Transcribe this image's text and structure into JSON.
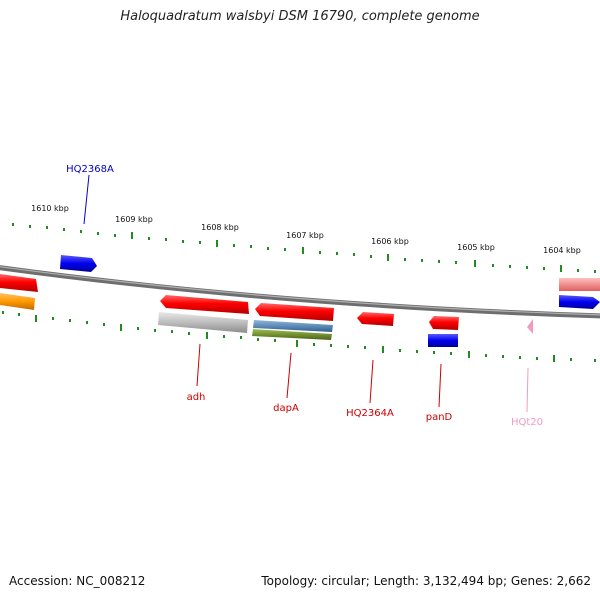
{
  "title": "Haloquadratum walsbyi DSM 16790, complete genome",
  "footer": {
    "accession": "Accession: NC_008212",
    "summary": "Topology: circular; Length: 3,132,494 bp; Genes: 2,662"
  },
  "ruler": {
    "labels": [
      "1610 kbp",
      "1609 kbp",
      "1608 kbp",
      "1607 kbp",
      "1606 kbp",
      "1605 kbp",
      "1604 kbp"
    ]
  },
  "colors": {
    "backbone": "#7a7a7a",
    "tick": "#228b22",
    "cds": "#ff0000",
    "gene_blue": "#0000ee",
    "orange": "#ff9900",
    "grey_feature": "#b3b3b3",
    "steel_feature": "#4682b4",
    "olive_feature": "#6b8e23",
    "trna_pink": "#f49ac2",
    "label_red": "#cc0000",
    "label_blue": "#0000cc"
  },
  "gene_labels": [
    {
      "name": "HQ2368A",
      "color": "#0000cc"
    },
    {
      "name": "adh",
      "color": "#cc0000"
    },
    {
      "name": "dapA",
      "color": "#cc0000"
    },
    {
      "name": "HQ2364A",
      "color": "#cc0000"
    },
    {
      "name": "panD",
      "color": "#cc0000"
    },
    {
      "name": "HQt20",
      "color": "#f49ac2"
    }
  ]
}
